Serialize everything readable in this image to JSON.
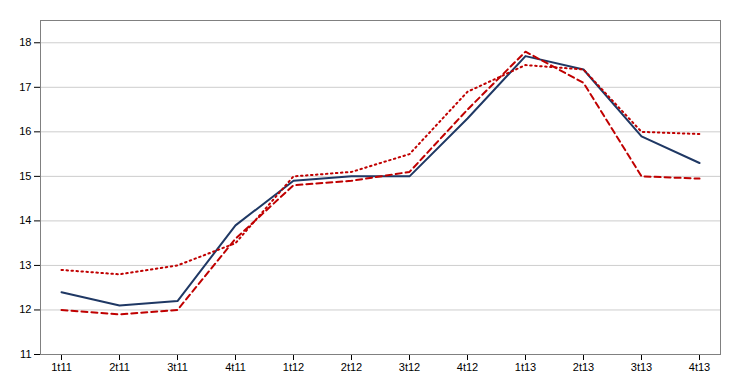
{
  "chart_data": {
    "type": "line",
    "categories": [
      "1t11",
      "2t11",
      "3t11",
      "4t11",
      "1t12",
      "2t12",
      "3t12",
      "4t12",
      "1t13",
      "2t13",
      "3t13",
      "4t13"
    ],
    "series": [
      {
        "color": "#1f3864",
        "line_style": "solid",
        "values": [
          12.4,
          12.1,
          12.2,
          13.9,
          14.9,
          15.0,
          15.0,
          16.3,
          17.7,
          17.4,
          15.9,
          15.3
        ]
      },
      {
        "color": "#c00000",
        "line_style": "dashed",
        "values": [
          12.0,
          11.9,
          12.0,
          13.6,
          14.8,
          14.9,
          15.1,
          16.5,
          17.8,
          17.1,
          15.0,
          14.95
        ]
      },
      {
        "color": "#c00000",
        "line_style": "dotted",
        "values": [
          12.9,
          12.8,
          13.0,
          13.5,
          15.0,
          15.1,
          15.5,
          16.9,
          17.5,
          17.4,
          16.0,
          15.95
        ]
      }
    ],
    "ylim": [
      11,
      18.5
    ],
    "yticks": [
      11,
      12,
      13,
      14,
      15,
      16,
      17,
      18
    ],
    "grid": true
  }
}
